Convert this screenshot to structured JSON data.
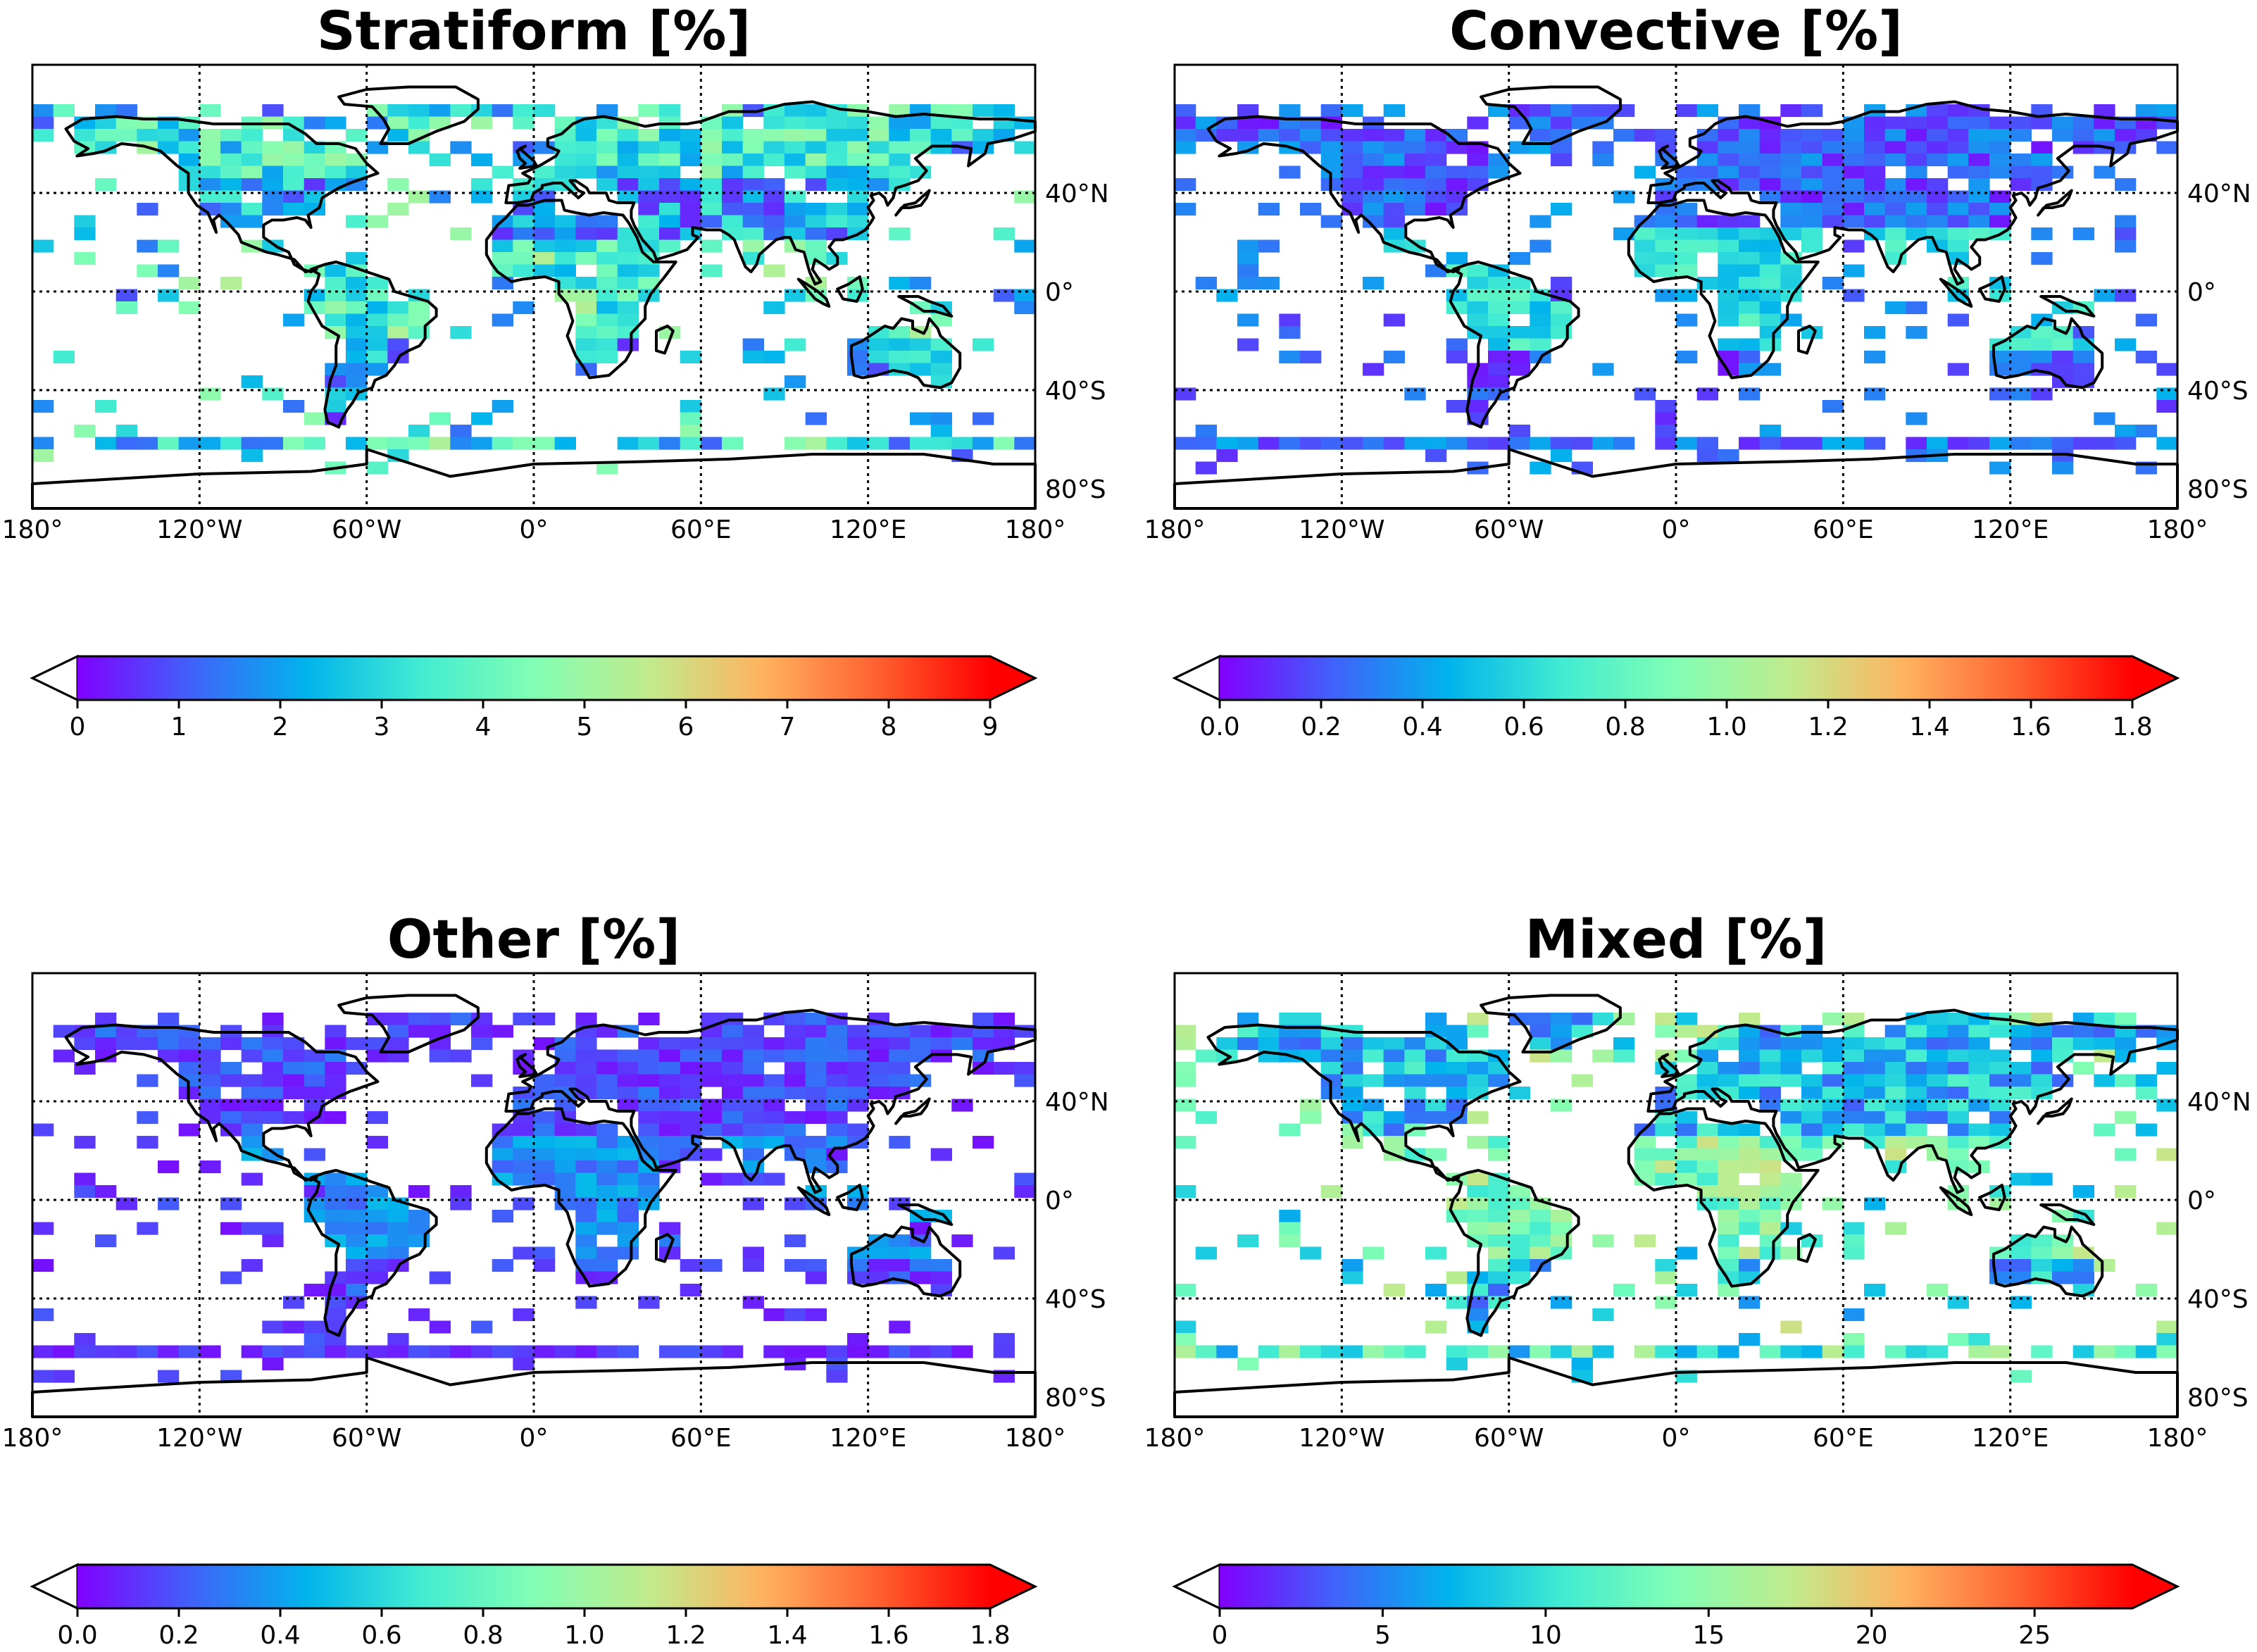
{
  "panels": [
    {
      "id": "stratiform",
      "title": "Stratiform [%]",
      "scale_max": 9,
      "colorbar": {
        "ticks": [
          "0",
          "1",
          "2",
          "3",
          "4",
          "5",
          "6",
          "7",
          "8",
          "9"
        ],
        "min": 0,
        "max": 9,
        "extend": "both"
      }
    },
    {
      "id": "convective",
      "title": "Convective [%]",
      "scale_max": 1.8,
      "colorbar": {
        "ticks": [
          "0.0",
          "0.2",
          "0.4",
          "0.6",
          "0.8",
          "1.0",
          "1.2",
          "1.4",
          "1.6",
          "1.8"
        ],
        "min": 0,
        "max": 1.8,
        "extend": "both"
      }
    },
    {
      "id": "other",
      "title": "Other [%]",
      "scale_max": 1.8,
      "colorbar": {
        "ticks": [
          "0.0",
          "0.2",
          "0.4",
          "0.6",
          "0.8",
          "1.0",
          "1.2",
          "1.4",
          "1.6",
          "1.8"
        ],
        "min": 0,
        "max": 1.8,
        "extend": "both"
      }
    },
    {
      "id": "mixed",
      "title": "Mixed [%]",
      "scale_max": 28,
      "colorbar": {
        "ticks": [
          "0",
          "5",
          "10",
          "15",
          "20",
          "25"
        ],
        "min": 0,
        "max": 28,
        "extend": "both"
      }
    }
  ],
  "longitude_labels": [
    "180°",
    "120°W",
    "60°W",
    "0°",
    "60°E",
    "120°E",
    "180°"
  ],
  "latitude_labels": [
    "40°N",
    "0°",
    "40°S",
    "80°S"
  ],
  "colormap": "rainbow",
  "colormap_stops": [
    "#8000ff",
    "#4062fa",
    "#01b3ec",
    "#41ecd2",
    "#81feb4",
    "#c1eb8d",
    "#ffb360",
    "#ff6230",
    "#ff0000"
  ],
  "missing_color": "#ffffff"
}
